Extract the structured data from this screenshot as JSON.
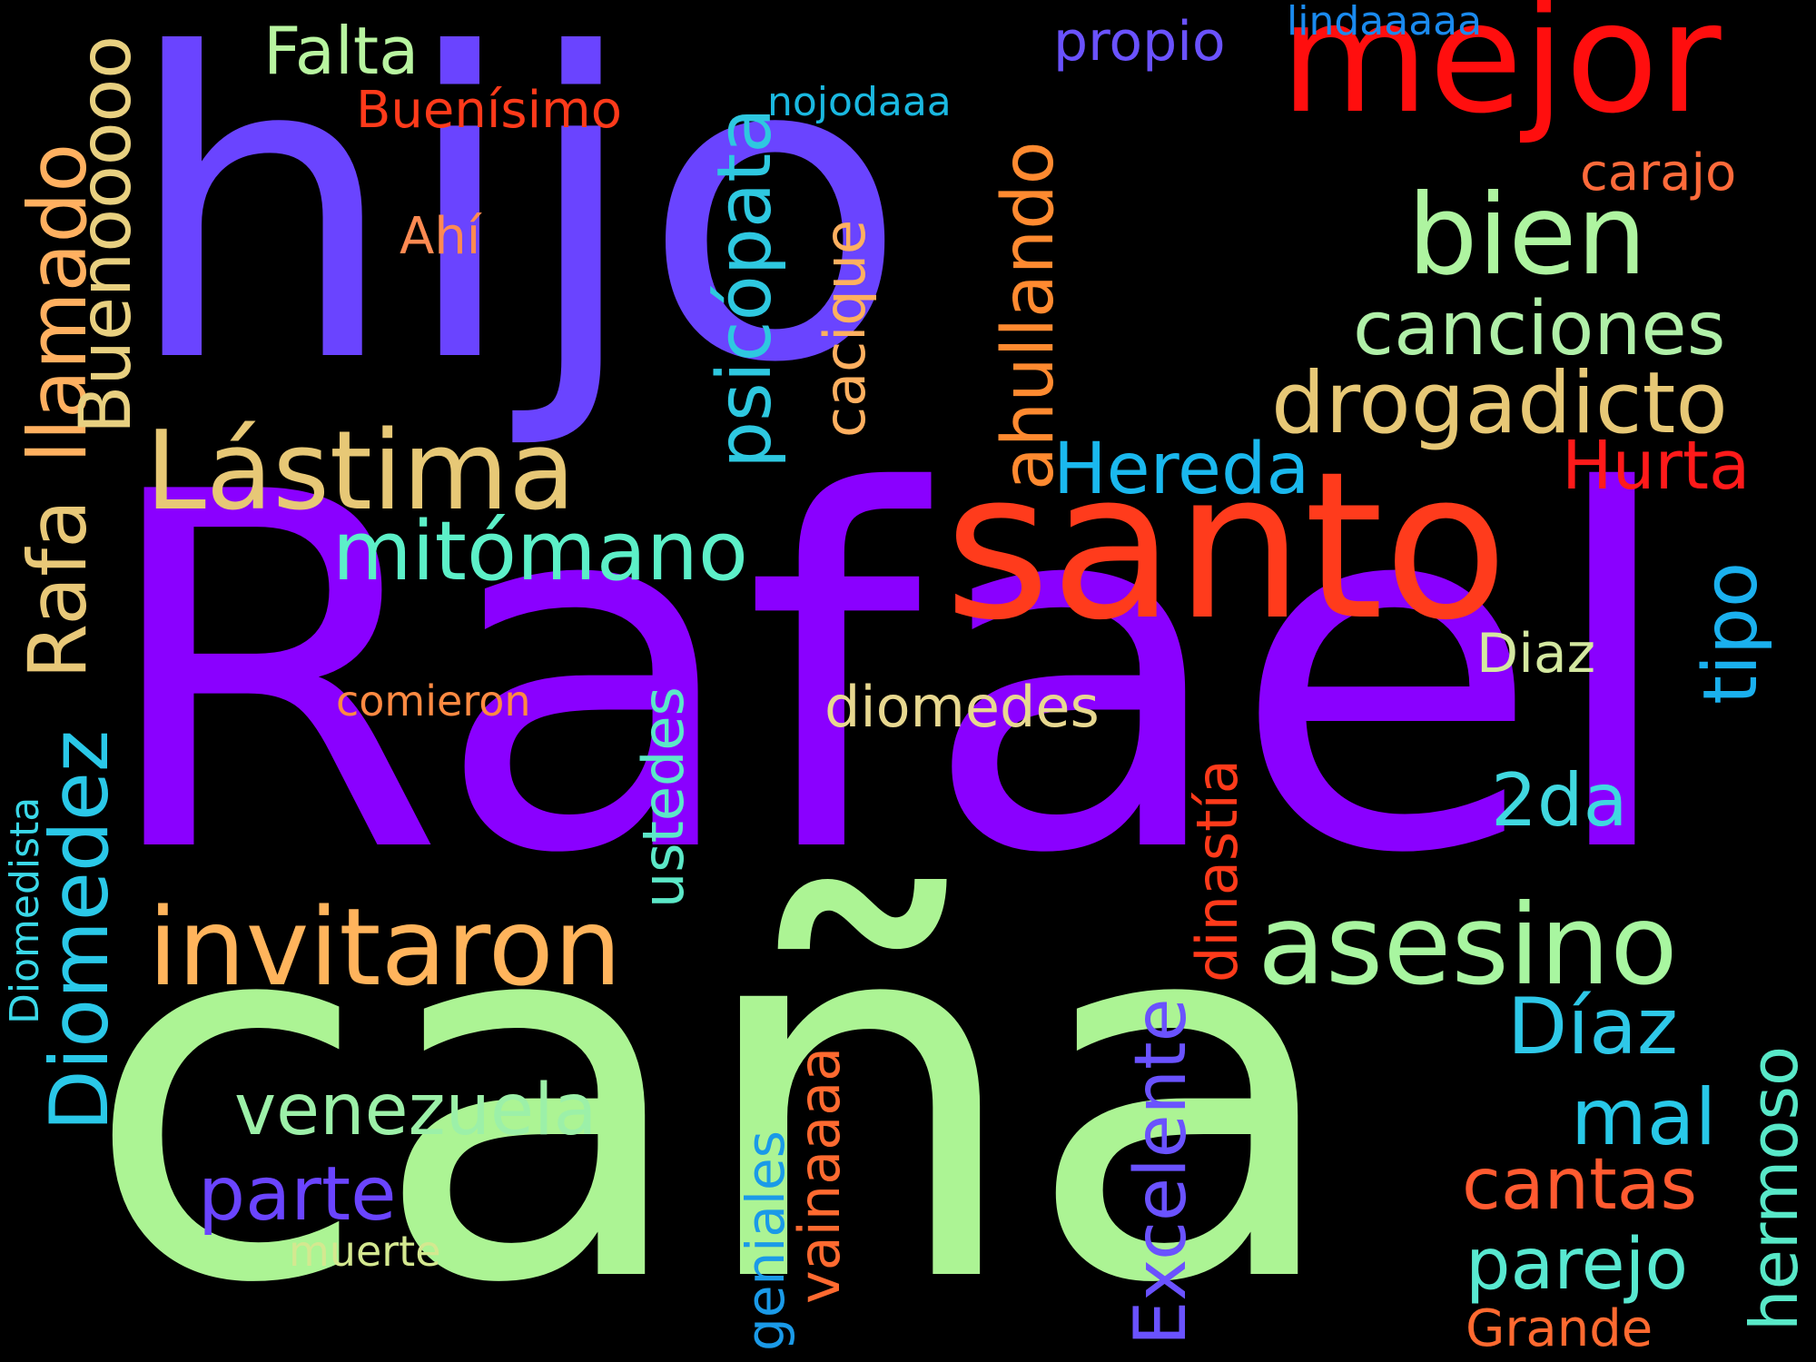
{
  "words": [
    {
      "text": "Rafael",
      "color": "#8a00ff",
      "orientation": "horizontal"
    },
    {
      "text": "caña",
      "color": "#acf494",
      "orientation": "horizontal"
    },
    {
      "text": "hijo",
      "color": "#6a44ff",
      "orientation": "horizontal"
    },
    {
      "text": "santo",
      "color": "#ff3b1c",
      "orientation": "horizontal"
    },
    {
      "text": "mejor",
      "color": "#ff0e0e",
      "orientation": "horizontal"
    },
    {
      "text": "Lástima",
      "color": "#e7c876",
      "orientation": "horizontal"
    },
    {
      "text": "invitaron",
      "color": "#ffb45c",
      "orientation": "horizontal"
    },
    {
      "text": "asesino",
      "color": "#a8f6a0",
      "orientation": "horizontal"
    },
    {
      "text": "bien",
      "color": "#aef4a0",
      "orientation": "horizontal"
    },
    {
      "text": "drogadicto",
      "color": "#e7c876",
      "orientation": "horizontal"
    },
    {
      "text": "canciones",
      "color": "#b0f0a8",
      "orientation": "horizontal"
    },
    {
      "text": "mitómano",
      "color": "#5cf0c8",
      "orientation": "horizontal"
    },
    {
      "text": "Hereda",
      "color": "#1ab8ee",
      "orientation": "horizontal"
    },
    {
      "text": "Hurta",
      "color": "#ff1a1a",
      "orientation": "horizontal"
    },
    {
      "text": "Falta",
      "color": "#b8f4a0",
      "orientation": "horizontal"
    },
    {
      "text": "Buenísimo",
      "color": "#ff3a1a",
      "orientation": "horizontal"
    },
    {
      "text": "Ahí",
      "color": "#ff8a52",
      "orientation": "horizontal"
    },
    {
      "text": "propio",
      "color": "#6a52ff",
      "orientation": "horizontal"
    },
    {
      "text": "lindaaaaa",
      "color": "#1a8aee",
      "orientation": "horizontal"
    },
    {
      "text": "nojodaaa",
      "color": "#1ab8e0",
      "orientation": "horizontal"
    },
    {
      "text": "carajo",
      "color": "#ff6a3a",
      "orientation": "horizontal"
    },
    {
      "text": "Díaz",
      "color": "#2ec8e8",
      "orientation": "horizontal"
    },
    {
      "text": "Diaz",
      "color": "#d4e8a0",
      "orientation": "horizontal"
    },
    {
      "text": "diomedes",
      "color": "#e8d890",
      "orientation": "horizontal"
    },
    {
      "text": "comieron",
      "color": "#ff8a42",
      "orientation": "horizontal"
    },
    {
      "text": "2da",
      "color": "#40d8e0",
      "orientation": "horizontal"
    },
    {
      "text": "venezuela",
      "color": "#9cf0a8",
      "orientation": "horizontal"
    },
    {
      "text": "parte",
      "color": "#6a44ff",
      "orientation": "horizontal"
    },
    {
      "text": "muerte",
      "color": "#d4e890",
      "orientation": "horizontal"
    },
    {
      "text": "mal",
      "color": "#28c8e8",
      "orientation": "horizontal"
    },
    {
      "text": "cantas",
      "color": "#ff5a30",
      "orientation": "horizontal"
    },
    {
      "text": "parejo",
      "color": "#58e8d0",
      "orientation": "horizontal"
    },
    {
      "text": "Grande",
      "color": "#ff6a30",
      "orientation": "horizontal"
    },
    {
      "text": "llamado",
      "color": "#ffb060",
      "orientation": "vertical"
    },
    {
      "text": "Rafa",
      "color": "#e8c878",
      "orientation": "vertical"
    },
    {
      "text": "Buenooooo",
      "color": "#e8d080",
      "orientation": "vertical"
    },
    {
      "text": "Diomedez",
      "color": "#2ac8e8",
      "orientation": "vertical"
    },
    {
      "text": "Diomedista",
      "color": "#3ad8e8",
      "orientation": "vertical"
    },
    {
      "text": "psicópata",
      "color": "#2ec8e0",
      "orientation": "vertical"
    },
    {
      "text": "cacique",
      "color": "#ffb060",
      "orientation": "vertical"
    },
    {
      "text": "ahullando",
      "color": "#ff8a30",
      "orientation": "vertical"
    },
    {
      "text": "ustedes",
      "color": "#5ce8c8",
      "orientation": "vertical"
    },
    {
      "text": "Excelente",
      "color": "#6a52ff",
      "orientation": "vertical"
    },
    {
      "text": "dinastía",
      "color": "#ff3a1a",
      "orientation": "vertical"
    },
    {
      "text": "tipo",
      "color": "#1ab0ee",
      "orientation": "vertical"
    },
    {
      "text": "hermoso",
      "color": "#58e8c8",
      "orientation": "vertical"
    },
    {
      "text": "vainaaaa",
      "color": "#ff6a30",
      "orientation": "vertical"
    },
    {
      "text": "geniales",
      "color": "#1a9ae8",
      "orientation": "vertical"
    }
  ]
}
